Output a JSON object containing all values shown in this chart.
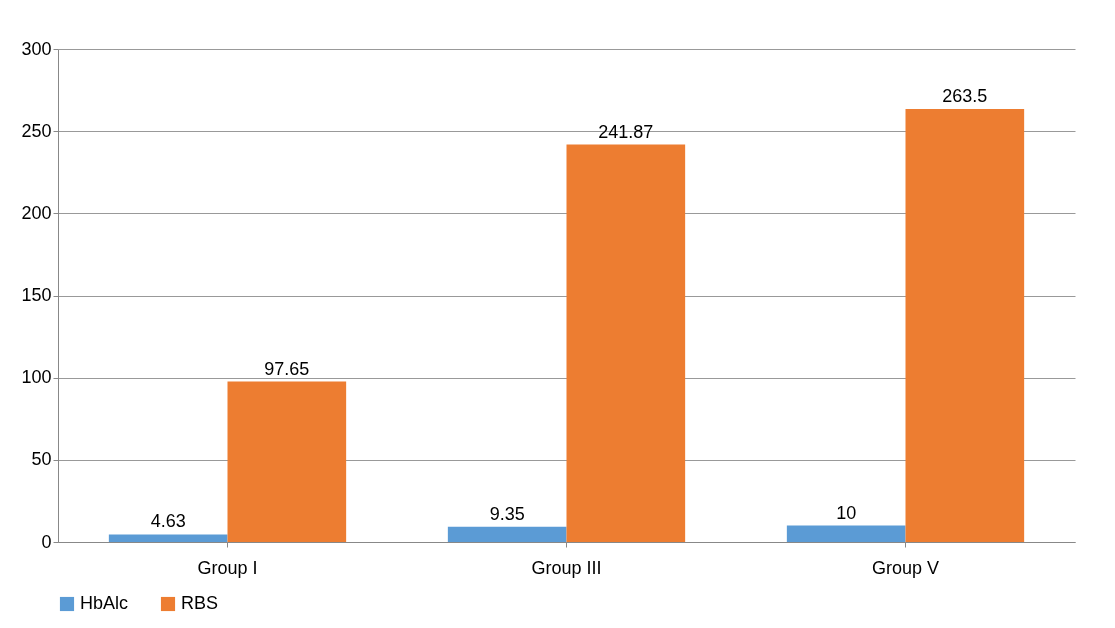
{
  "chart_data": {
    "type": "bar",
    "categories": [
      "Group I",
      "Group III",
      "Group V"
    ],
    "series": [
      {
        "name": "HbAlc",
        "color": "#5b9bd5",
        "values": [
          4.63,
          9.35,
          10
        ]
      },
      {
        "name": "RBS",
        "color": "#ed7d31",
        "values": [
          97.65,
          241.87,
          263.5
        ]
      }
    ],
    "ylim": [
      0,
      300
    ],
    "yticks": [
      0,
      50,
      100,
      150,
      200,
      250,
      300
    ],
    "grid": "y",
    "legend": "bottom",
    "data_labels": true
  }
}
